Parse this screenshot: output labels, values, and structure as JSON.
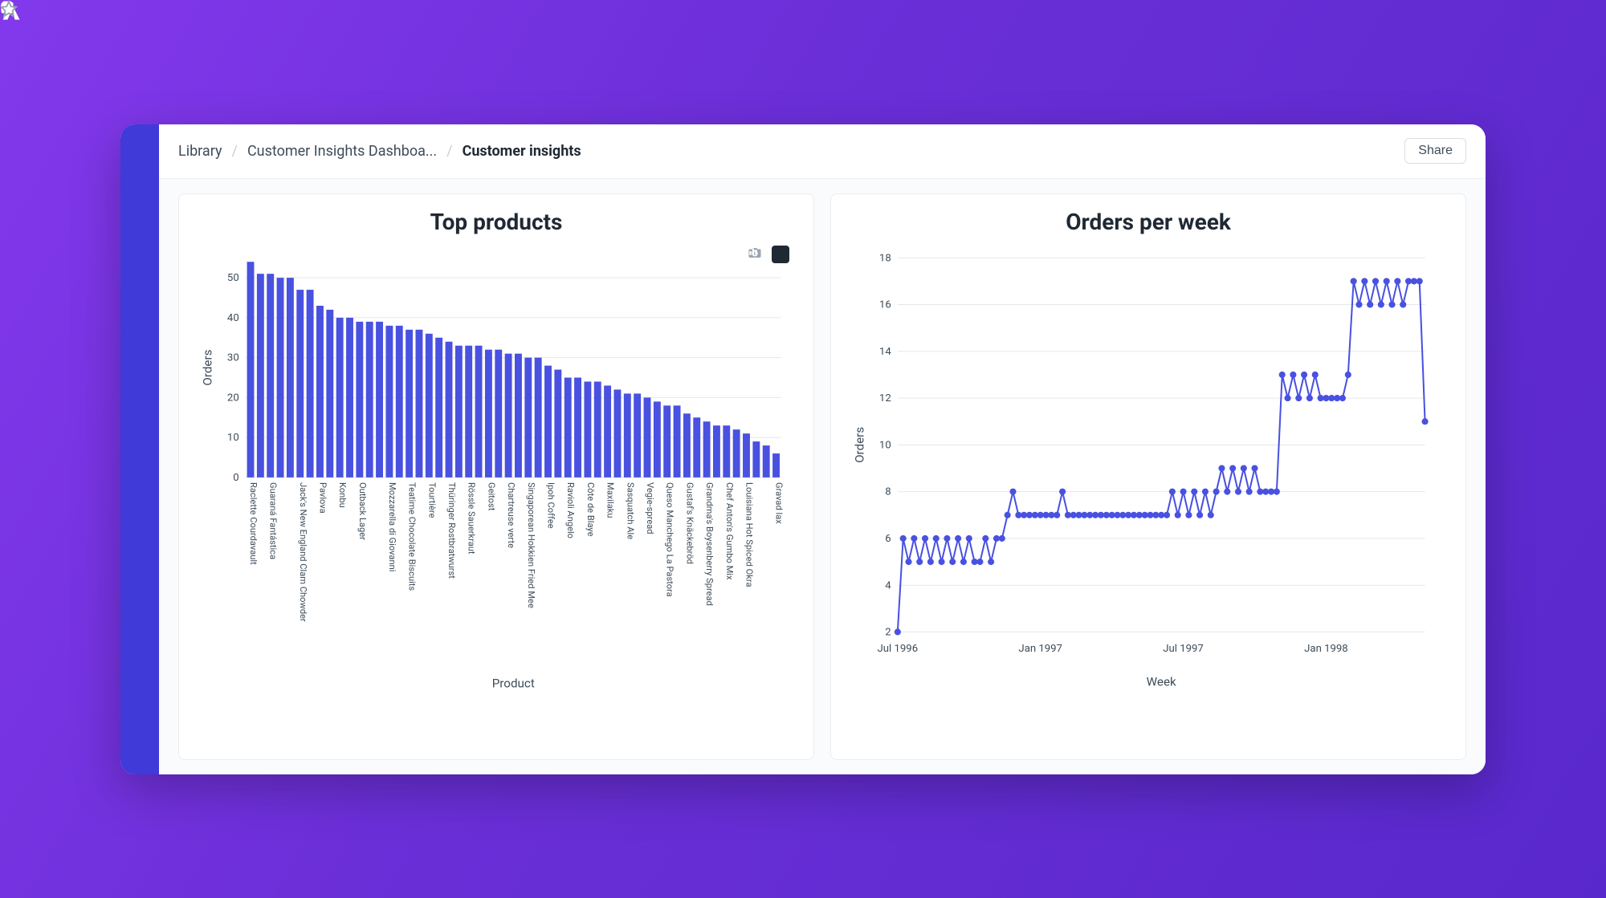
{
  "sidebar": {
    "logo_letter": "A",
    "icons": [
      "search",
      "briefcase",
      "inbox",
      "calendar",
      "document",
      "gear"
    ],
    "bottom_icons": [
      "apps",
      "cube",
      "chat"
    ]
  },
  "breadcrumb": {
    "items": [
      "Library",
      "Customer Insights Dashboa...",
      "Customer insights"
    ]
  },
  "actions": {
    "share_label": "Share"
  },
  "colors": {
    "accent": "#3f3ad8",
    "bar": "#4951e0",
    "line": "#4951e0",
    "grid": "#e4e7eb",
    "text": "#1f2933"
  },
  "bar_chart": {
    "type": "bar",
    "title": "Top products",
    "ylabel": "Orders",
    "xlabel": "Product",
    "ylim": [
      0,
      55
    ],
    "ytick_step": 10,
    "bar_color": "#4951e0",
    "grid_color": "#e4e7eb",
    "background_color": "#ffffff",
    "title_fontsize": 28,
    "label_fontsize": 15,
    "tick_fontsize": 13,
    "bar_label_fontsize": 11,
    "data": [
      {
        "label": "Raclette Courdavault",
        "value": 54
      },
      {
        "label": "",
        "value": 51
      },
      {
        "label": "Guaraná Fantástica",
        "value": 51
      },
      {
        "label": "",
        "value": 50
      },
      {
        "label": "",
        "value": 50
      },
      {
        "label": "Jack's New England Clam Chowder",
        "value": 47
      },
      {
        "label": "",
        "value": 47
      },
      {
        "label": "Pavlova",
        "value": 43
      },
      {
        "label": "",
        "value": 42
      },
      {
        "label": "Konbu",
        "value": 40
      },
      {
        "label": "",
        "value": 40
      },
      {
        "label": "Outback Lager",
        "value": 39
      },
      {
        "label": "",
        "value": 39
      },
      {
        "label": "",
        "value": 39
      },
      {
        "label": "Mozzarella di Giovanni",
        "value": 38
      },
      {
        "label": "",
        "value": 38
      },
      {
        "label": "Teatime Chocolate Biscuits",
        "value": 37
      },
      {
        "label": "",
        "value": 37
      },
      {
        "label": "Tourtière",
        "value": 36
      },
      {
        "label": "",
        "value": 35
      },
      {
        "label": "Thüringer Rostbratwurst",
        "value": 34
      },
      {
        "label": "",
        "value": 33
      },
      {
        "label": "Rössle Sauerkraut",
        "value": 33
      },
      {
        "label": "",
        "value": 33
      },
      {
        "label": "Geitost",
        "value": 32
      },
      {
        "label": "",
        "value": 32
      },
      {
        "label": "Chartreuse verte",
        "value": 31
      },
      {
        "label": "",
        "value": 31
      },
      {
        "label": "Singaporean Hokkien Fried Mee",
        "value": 30
      },
      {
        "label": "",
        "value": 30
      },
      {
        "label": "Ipoh Coffee",
        "value": 28
      },
      {
        "label": "",
        "value": 27
      },
      {
        "label": "Ravioli Angelo",
        "value": 25
      },
      {
        "label": "",
        "value": 25
      },
      {
        "label": "Côte de Blaye",
        "value": 24
      },
      {
        "label": "",
        "value": 24
      },
      {
        "label": "Maxilaku",
        "value": 23
      },
      {
        "label": "",
        "value": 22
      },
      {
        "label": "Sasquatch Ale",
        "value": 21
      },
      {
        "label": "",
        "value": 21
      },
      {
        "label": "Vegie-spread",
        "value": 20
      },
      {
        "label": "",
        "value": 19
      },
      {
        "label": "Queso Manchego La Pastora",
        "value": 18
      },
      {
        "label": "",
        "value": 18
      },
      {
        "label": "Gustaf's Knäckebröd",
        "value": 16
      },
      {
        "label": "",
        "value": 15
      },
      {
        "label": "Grandma's Boysenberry Spread",
        "value": 14
      },
      {
        "label": "",
        "value": 13
      },
      {
        "label": "Chef Anton's Gumbo Mix",
        "value": 13
      },
      {
        "label": "",
        "value": 12
      },
      {
        "label": "Louisiana Hot Spiced Okra",
        "value": 11
      },
      {
        "label": "",
        "value": 9
      },
      {
        "label": "",
        "value": 8
      },
      {
        "label": "Gravad lax",
        "value": 6
      }
    ]
  },
  "line_chart": {
    "type": "line",
    "title": "Orders per week",
    "ylabel": "Orders",
    "xlabel": "Week",
    "ylim": [
      2,
      18
    ],
    "ytick_step": 2,
    "line_color": "#4951e0",
    "marker_color": "#4951e0",
    "marker_size": 4,
    "line_width": 2,
    "grid_color": "#e4e7eb",
    "background_color": "#ffffff",
    "title_fontsize": 28,
    "label_fontsize": 15,
    "tick_fontsize": 13,
    "x_ticks": [
      {
        "pos": 0,
        "label": "Jul 1996"
      },
      {
        "pos": 26,
        "label": "Jan 1997"
      },
      {
        "pos": 52,
        "label": "Jul 1997"
      },
      {
        "pos": 78,
        "label": "Jan 1998"
      }
    ],
    "values": [
      2,
      6,
      5,
      6,
      5,
      6,
      5,
      6,
      5,
      6,
      5,
      6,
      5,
      6,
      5,
      5,
      6,
      5,
      6,
      6,
      7,
      8,
      7,
      7,
      7,
      7,
      7,
      7,
      7,
      7,
      8,
      7,
      7,
      7,
      7,
      7,
      7,
      7,
      7,
      7,
      7,
      7,
      7,
      7,
      7,
      7,
      7,
      7,
      7,
      7,
      8,
      7,
      8,
      7,
      8,
      7,
      8,
      7,
      8,
      9,
      8,
      9,
      8,
      9,
      8,
      9,
      8,
      8,
      8,
      8,
      13,
      12,
      13,
      12,
      13,
      12,
      13,
      12,
      12,
      12,
      12,
      12,
      13,
      17,
      16,
      17,
      16,
      17,
      16,
      17,
      16,
      17,
      16,
      17,
      17,
      17,
      11
    ]
  }
}
